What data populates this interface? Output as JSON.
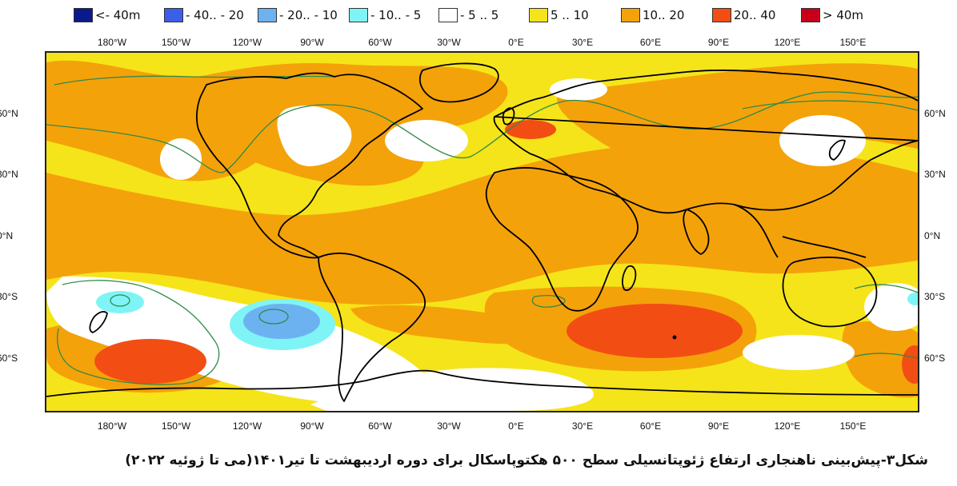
{
  "legend": [
    {
      "label": "<- 40m",
      "color": "#0a1a8c"
    },
    {
      "label": "- 40.. - 20",
      "color": "#3a5fe8"
    },
    {
      "label": "- 20.. - 10",
      "color": "#6cb2f0"
    },
    {
      "label": "- 10.. - 5",
      "color": "#7ff4f6"
    },
    {
      "label": "- 5 .. 5",
      "color": "#ffffff"
    },
    {
      "label": "5 .. 10",
      "color": "#f5e419"
    },
    {
      "label": "10.. 20",
      "color": "#f4a20a"
    },
    {
      "label": "20.. 40",
      "color": "#f24e14"
    },
    {
      "label": "> 40m",
      "color": "#c6001a"
    }
  ],
  "longitudes": [
    "180°W",
    "150°W",
    "120°W",
    "90°W",
    "60°W",
    "30°W",
    "0°E",
    "30°E",
    "60°E",
    "90°E",
    "120°E",
    "150°E"
  ],
  "latitudes": [
    "60°N",
    "30°N",
    "0°N",
    "30°S",
    "60°S"
  ],
  "caption": "شکل۳-پیش‌بینی ناهنجاری ارتفاع ژئوپتانسیلی سطح ۵۰۰ هکتوپاسکال برای دوره اردیبهشت تا تیر۱۴۰۱(می تا ژوئیه ۲۰۲۲)"
}
